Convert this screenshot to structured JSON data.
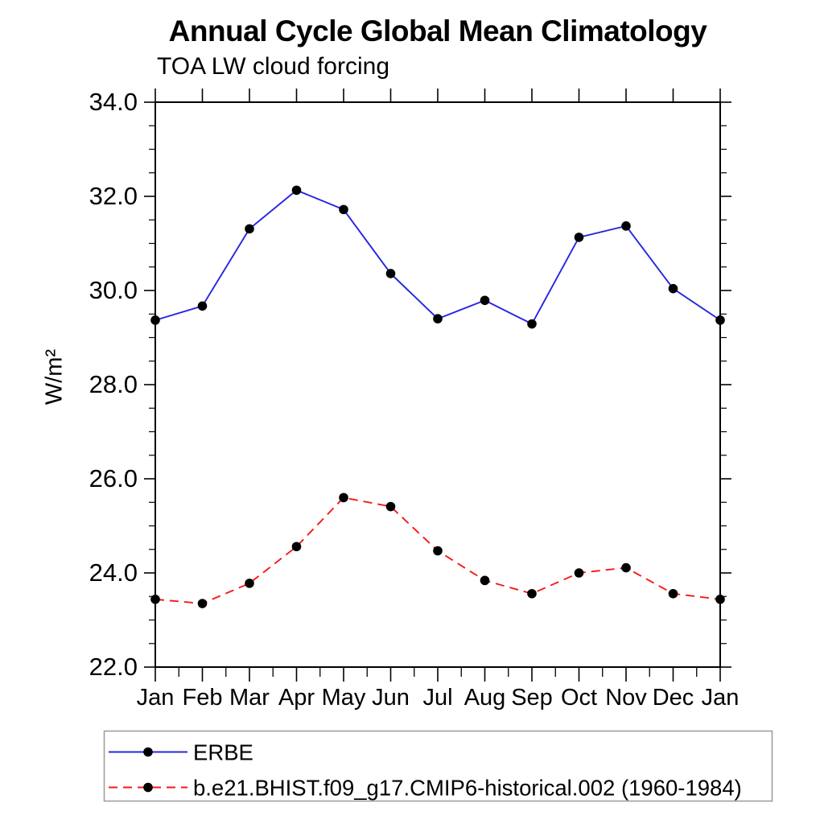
{
  "chart_data": {
    "type": "line",
    "title": "Annual Cycle Global Mean Climatology",
    "subtitle": "TOA LW cloud forcing",
    "ylabel": "W/m²",
    "x_categories": [
      "Jan",
      "Feb",
      "Mar",
      "Apr",
      "May",
      "Jun",
      "Jul",
      "Aug",
      "Sep",
      "Oct",
      "Nov",
      "Dec",
      "Jan"
    ],
    "ylim": [
      22.0,
      34.0
    ],
    "ytick_major_step": 2.0,
    "ytick_minor_step": 0.5,
    "grid": false,
    "legend_position": "below-left",
    "series": [
      {
        "name": "ERBE",
        "color": "#2525e0",
        "line_style": "solid",
        "marker": "filled-black-circle",
        "values": [
          29.37,
          29.67,
          31.31,
          32.13,
          31.72,
          30.36,
          29.4,
          29.79,
          29.29,
          31.13,
          31.37,
          30.04,
          29.37
        ]
      },
      {
        "name": "b.e21.BHIST.f09_g17.CMIP6-historical.002 (1960-1984)",
        "color": "#f81717",
        "line_style": "dashed",
        "marker": "filled-black-circle",
        "values": [
          23.44,
          23.35,
          23.78,
          24.56,
          25.6,
          25.41,
          24.47,
          23.84,
          23.56,
          24.0,
          24.11,
          23.56,
          23.44
        ]
      }
    ]
  },
  "colors": {
    "axis": "#000000",
    "marker": "#000000",
    "legend_border": "#999999",
    "background": "#ffffff"
  }
}
